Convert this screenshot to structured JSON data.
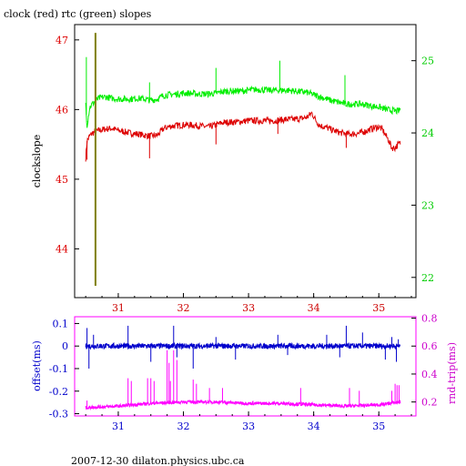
{
  "title": "clock (red) rtc (green) slopes",
  "footer": "2007-12-30  dilaton.physics.ubc.ca",
  "colors": {
    "clock": "#dd0000",
    "rtc": "#00ee00",
    "vline": "#808000",
    "offset": "#0000cc",
    "rndtrip": "#ff00ff",
    "axis_black": "#000000"
  },
  "chart_data": [
    {
      "type": "line",
      "panel": "top",
      "xlim": [
        30.33,
        35.57
      ],
      "x_ticks": [
        "31",
        "32",
        "33",
        "34",
        "35"
      ],
      "x_tick_values": [
        31,
        32,
        33,
        34,
        35
      ],
      "left_axis": {
        "label": "clockslope",
        "ylim": [
          43.3,
          47.22
        ],
        "ticks": [
          "44",
          "45",
          "46",
          "47"
        ],
        "tick_values": [
          44,
          45,
          46,
          47
        ],
        "color": "#dd0000"
      },
      "right_axis": {
        "label": "",
        "ylim": [
          21.72,
          25.5
        ],
        "ticks": [
          "22",
          "23",
          "24",
          "25"
        ],
        "tick_values": [
          22,
          23,
          24,
          25
        ],
        "color": "#00cc00"
      },
      "series": [
        {
          "axis": "left",
          "color": "#dd0000",
          "points": [
            [
              30.5,
              45.3
            ],
            [
              30.52,
              45.55
            ],
            [
              30.56,
              45.62
            ],
            [
              30.6,
              45.66
            ],
            [
              30.7,
              45.7
            ],
            [
              30.8,
              45.72
            ],
            [
              30.9,
              45.73
            ],
            [
              31.0,
              45.7
            ],
            [
              31.1,
              45.68
            ],
            [
              31.2,
              45.66
            ],
            [
              31.3,
              45.65
            ],
            [
              31.4,
              45.63
            ],
            [
              31.5,
              45.62
            ],
            [
              31.6,
              45.63
            ],
            [
              31.7,
              45.73
            ],
            [
              31.8,
              45.76
            ],
            [
              31.9,
              45.77
            ],
            [
              32.0,
              45.78
            ],
            [
              32.1,
              45.78
            ],
            [
              32.2,
              45.77
            ],
            [
              32.3,
              45.76
            ],
            [
              32.4,
              45.75
            ],
            [
              32.5,
              45.78
            ],
            [
              32.6,
              45.81
            ],
            [
              32.7,
              45.82
            ],
            [
              32.8,
              45.82
            ],
            [
              32.9,
              45.83
            ],
            [
              33.0,
              45.84
            ],
            [
              33.1,
              45.84
            ],
            [
              33.2,
              45.84
            ],
            [
              33.3,
              45.84
            ],
            [
              33.4,
              45.84
            ],
            [
              33.5,
              45.85
            ],
            [
              33.6,
              45.86
            ],
            [
              33.7,
              45.86
            ],
            [
              33.8,
              45.87
            ],
            [
              33.9,
              45.89
            ],
            [
              33.97,
              45.95
            ],
            [
              34.05,
              45.82
            ],
            [
              34.1,
              45.77
            ],
            [
              34.2,
              45.74
            ],
            [
              34.3,
              45.7
            ],
            [
              34.4,
              45.67
            ],
            [
              34.5,
              45.65
            ],
            [
              34.6,
              45.65
            ],
            [
              34.7,
              45.66
            ],
            [
              34.8,
              45.69
            ],
            [
              34.9,
              45.73
            ],
            [
              35.0,
              45.75
            ],
            [
              35.05,
              45.72
            ],
            [
              35.1,
              45.64
            ],
            [
              35.15,
              45.56
            ],
            [
              35.2,
              45.45
            ],
            [
              35.25,
              45.45
            ],
            [
              35.3,
              45.5
            ],
            [
              35.33,
              45.52
            ]
          ],
          "spikes": [
            [
              30.52,
              45.28
            ],
            [
              31.48,
              45.3
            ],
            [
              32.5,
              45.5
            ],
            [
              33.45,
              45.65
            ],
            [
              34.5,
              45.45
            ]
          ]
        },
        {
          "axis": "right",
          "color": "#00ee00",
          "points": [
            [
              30.5,
              24.4
            ],
            [
              30.52,
              24.1
            ],
            [
              30.56,
              24.35
            ],
            [
              30.6,
              24.4
            ],
            [
              30.7,
              24.48
            ],
            [
              30.8,
              24.5
            ],
            [
              30.9,
              24.48
            ],
            [
              31.0,
              24.47
            ],
            [
              31.1,
              24.47
            ],
            [
              31.2,
              24.47
            ],
            [
              31.3,
              24.48
            ],
            [
              31.4,
              24.47
            ],
            [
              31.5,
              24.45
            ],
            [
              31.6,
              24.47
            ],
            [
              31.7,
              24.52
            ],
            [
              31.8,
              24.53
            ],
            [
              31.9,
              24.54
            ],
            [
              32.0,
              24.55
            ],
            [
              32.1,
              24.55
            ],
            [
              32.2,
              24.54
            ],
            [
              32.3,
              24.54
            ],
            [
              32.4,
              24.54
            ],
            [
              32.5,
              24.55
            ],
            [
              32.6,
              24.57
            ],
            [
              32.7,
              24.58
            ],
            [
              32.8,
              24.58
            ],
            [
              32.9,
              24.58
            ],
            [
              33.0,
              24.59
            ],
            [
              33.1,
              24.6
            ],
            [
              33.2,
              24.6
            ],
            [
              33.3,
              24.59
            ],
            [
              33.4,
              24.59
            ],
            [
              33.5,
              24.59
            ],
            [
              33.6,
              24.59
            ],
            [
              33.7,
              24.58
            ],
            [
              33.8,
              24.57
            ],
            [
              33.9,
              24.56
            ],
            [
              34.0,
              24.53
            ],
            [
              34.1,
              24.5
            ],
            [
              34.2,
              24.47
            ],
            [
              34.3,
              24.44
            ],
            [
              34.4,
              24.42
            ],
            [
              34.5,
              24.4
            ],
            [
              34.6,
              24.4
            ],
            [
              34.7,
              24.4
            ],
            [
              34.8,
              24.39
            ],
            [
              34.9,
              24.37
            ],
            [
              35.0,
              24.36
            ],
            [
              35.1,
              24.33
            ],
            [
              35.2,
              24.31
            ],
            [
              35.3,
              24.3
            ],
            [
              35.33,
              24.33
            ]
          ],
          "spikes": [
            [
              30.51,
              25.05
            ],
            [
              30.53,
              24.15
            ],
            [
              31.48,
              24.7
            ],
            [
              32.5,
              24.9
            ],
            [
              33.48,
              25.0
            ],
            [
              34.48,
              24.8
            ]
          ]
        }
      ],
      "vline": {
        "x": 30.65,
        "y_from": 43.47,
        "y_to": 47.1,
        "color": "#808000"
      }
    },
    {
      "type": "line",
      "panel": "bottom",
      "xlim": [
        30.33,
        35.57
      ],
      "x_ticks": [
        "31",
        "32",
        "33",
        "34",
        "35"
      ],
      "x_tick_values": [
        31,
        32,
        33,
        34,
        35
      ],
      "left_axis": {
        "label": "offset(ms)",
        "ylim": [
          -0.31,
          0.13
        ],
        "ticks": [
          "0.1",
          "0",
          "-0.1",
          "-0.2",
          "-0.3"
        ],
        "tick_values": [
          0.1,
          0,
          -0.1,
          -0.2,
          -0.3
        ],
        "color": "#0000cc"
      },
      "right_axis": {
        "label": "rnd-trip(ms)",
        "ylim": [
          0.1,
          0.81
        ],
        "ticks": [
          "0.2",
          "0.4",
          "0.6",
          "0.8"
        ],
        "tick_values": [
          0.2,
          0.4,
          0.6,
          0.8
        ],
        "color": "#cc00cc"
      },
      "series": [
        {
          "axis": "left",
          "color": "#0000cc",
          "baseline": 0.0,
          "noise": 0.012,
          "x_range": [
            30.5,
            35.33
          ],
          "spikes": [
            [
              30.52,
              0.08
            ],
            [
              30.55,
              -0.1
            ],
            [
              30.62,
              0.05
            ],
            [
              31.15,
              0.09
            ],
            [
              31.5,
              -0.07
            ],
            [
              31.85,
              0.09
            ],
            [
              31.9,
              -0.05
            ],
            [
              32.15,
              -0.1
            ],
            [
              32.5,
              0.04
            ],
            [
              32.8,
              -0.06
            ],
            [
              33.45,
              0.05
            ],
            [
              33.6,
              -0.04
            ],
            [
              34.2,
              0.05
            ],
            [
              34.4,
              -0.05
            ],
            [
              34.5,
              0.09
            ],
            [
              34.75,
              0.06
            ],
            [
              35.1,
              -0.06
            ],
            [
              35.2,
              0.04
            ],
            [
              35.27,
              -0.07
            ],
            [
              35.3,
              0.03
            ]
          ]
        },
        {
          "axis": "right",
          "color": "#ff00ff",
          "baseline": 0.19,
          "noise": 0.012,
          "x_range": [
            30.5,
            35.33
          ],
          "trend": [
            [
              30.5,
              0.16
            ],
            [
              31.0,
              0.17
            ],
            [
              31.5,
              0.19
            ],
            [
              32.0,
              0.2
            ],
            [
              32.5,
              0.2
            ],
            [
              33.0,
              0.19
            ],
            [
              33.5,
              0.19
            ],
            [
              34.0,
              0.18
            ],
            [
              34.5,
              0.17
            ],
            [
              35.0,
              0.18
            ],
            [
              35.33,
              0.2
            ]
          ],
          "spikes": [
            [
              30.52,
              0.21
            ],
            [
              31.15,
              0.37
            ],
            [
              31.2,
              0.35
            ],
            [
              31.45,
              0.37
            ],
            [
              31.5,
              0.37
            ],
            [
              31.55,
              0.35
            ],
            [
              31.75,
              0.57
            ],
            [
              31.78,
              0.48
            ],
            [
              31.8,
              0.35
            ],
            [
              31.85,
              0.57
            ],
            [
              31.9,
              0.5
            ],
            [
              32.15,
              0.36
            ],
            [
              32.2,
              0.33
            ],
            [
              32.4,
              0.3
            ],
            [
              32.6,
              0.3
            ],
            [
              33.8,
              0.3
            ],
            [
              34.55,
              0.3
            ],
            [
              34.7,
              0.28
            ],
            [
              35.2,
              0.28
            ],
            [
              35.25,
              0.33
            ],
            [
              35.28,
              0.32
            ],
            [
              35.31,
              0.32
            ]
          ]
        }
      ]
    }
  ]
}
